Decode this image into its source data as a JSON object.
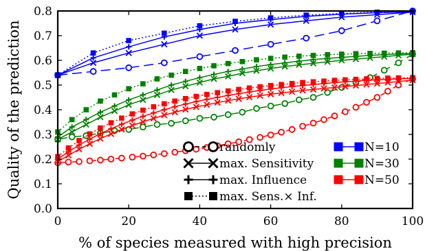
{
  "chart_data": {
    "type": "line",
    "xlabel": "% of species measured with high precision",
    "ylabel": "Quality of the prediction",
    "xlim": [
      0,
      100
    ],
    "ylim": [
      0.0,
      0.8
    ],
    "xticks": [
      0,
      20,
      40,
      60,
      80,
      100
    ],
    "yticks": [
      0.0,
      0.1,
      0.2,
      0.3,
      0.4,
      0.5,
      0.6,
      0.7,
      0.8
    ],
    "grid": false,
    "colors": {
      "N=10": "#0000ff",
      "N=30": "#008000",
      "N=50": "#ff0000"
    },
    "methods": [
      {
        "label": "randomly",
        "marker": "open-circle",
        "dash": "dashed"
      },
      {
        "label": "max. Sensitivity",
        "marker": "x",
        "dash": "solid"
      },
      {
        "label": "max. Influence",
        "marker": "plus",
        "dash": "solid"
      },
      {
        "label": "max. Sens.× Inf.",
        "marker": "filled-square",
        "dash": "dotted"
      }
    ],
    "sizes": [
      {
        "label": "N=10",
        "color": "#0000ff"
      },
      {
        "label": "N=30",
        "color": "#008000"
      },
      {
        "label": "N=50",
        "color": "#ff0000"
      }
    ],
    "series": [
      {
        "group": "N=10",
        "method": "randomly",
        "x": [
          0,
          10,
          20,
          30,
          40,
          50,
          60,
          70,
          80,
          90,
          100
        ],
        "values": [
          0.54,
          0.555,
          0.57,
          0.59,
          0.615,
          0.64,
          0.665,
          0.69,
          0.72,
          0.76,
          0.8
        ]
      },
      {
        "group": "N=10",
        "method": "max. Sensitivity",
        "x": [
          0,
          10,
          20,
          30,
          40,
          50,
          60,
          70,
          80,
          90,
          100
        ],
        "values": [
          0.54,
          0.59,
          0.63,
          0.665,
          0.7,
          0.725,
          0.745,
          0.76,
          0.775,
          0.785,
          0.795
        ]
      },
      {
        "group": "N=10",
        "method": "max. Influence",
        "x": [
          0,
          10,
          20,
          30,
          40,
          50,
          60,
          70,
          80,
          90,
          100
        ],
        "values": [
          0.54,
          0.61,
          0.655,
          0.695,
          0.725,
          0.75,
          0.765,
          0.778,
          0.787,
          0.793,
          0.797
        ]
      },
      {
        "group": "N=10",
        "method": "max. Sens.× Inf.",
        "x": [
          0,
          10,
          20,
          30,
          40,
          50,
          60,
          70,
          80,
          90,
          100
        ],
        "values": [
          0.54,
          0.63,
          0.68,
          0.71,
          0.74,
          0.758,
          0.772,
          0.783,
          0.79,
          0.795,
          0.798
        ]
      },
      {
        "group": "N=30",
        "method": "randomly",
        "x": [
          0,
          4,
          8,
          12,
          16,
          20,
          24,
          28,
          32,
          36,
          40,
          44,
          48,
          52,
          56,
          60,
          64,
          68,
          72,
          76,
          80,
          84,
          88,
          92,
          96,
          100
        ],
        "values": [
          0.28,
          0.29,
          0.295,
          0.305,
          0.315,
          0.32,
          0.33,
          0.34,
          0.345,
          0.355,
          0.365,
          0.37,
          0.38,
          0.39,
          0.405,
          0.415,
          0.425,
          0.44,
          0.45,
          0.47,
          0.49,
          0.51,
          0.53,
          0.56,
          0.59,
          0.625
        ]
      },
      {
        "group": "N=30",
        "method": "max. Sensitivity",
        "x": [
          0,
          4,
          8,
          12,
          16,
          20,
          24,
          28,
          32,
          36,
          40,
          44,
          48,
          52,
          56,
          60,
          64,
          68,
          72,
          76,
          80,
          84,
          88,
          92,
          96,
          100
        ],
        "values": [
          0.28,
          0.31,
          0.34,
          0.37,
          0.395,
          0.42,
          0.44,
          0.46,
          0.48,
          0.495,
          0.51,
          0.525,
          0.535,
          0.548,
          0.558,
          0.567,
          0.575,
          0.582,
          0.588,
          0.594,
          0.6,
          0.605,
          0.61,
          0.615,
          0.62,
          0.625
        ]
      },
      {
        "group": "N=30",
        "method": "max. Influence",
        "x": [
          0,
          4,
          8,
          12,
          16,
          20,
          24,
          28,
          32,
          36,
          40,
          44,
          48,
          52,
          56,
          60,
          64,
          68,
          72,
          76,
          80,
          84,
          88,
          92,
          96,
          100
        ],
        "values": [
          0.29,
          0.33,
          0.36,
          0.39,
          0.415,
          0.44,
          0.46,
          0.48,
          0.5,
          0.515,
          0.53,
          0.543,
          0.555,
          0.565,
          0.575,
          0.583,
          0.59,
          0.597,
          0.603,
          0.608,
          0.612,
          0.616,
          0.62,
          0.623,
          0.626,
          0.628
        ]
      },
      {
        "group": "N=30",
        "method": "max. Sens.× Inf.",
        "x": [
          0,
          4,
          8,
          12,
          16,
          20,
          24,
          28,
          32,
          36,
          40,
          44,
          48,
          52,
          56,
          60,
          64,
          68,
          72,
          76,
          80,
          84,
          88,
          92,
          96,
          100
        ],
        "values": [
          0.31,
          0.36,
          0.4,
          0.435,
          0.46,
          0.485,
          0.505,
          0.525,
          0.54,
          0.555,
          0.567,
          0.578,
          0.587,
          0.595,
          0.602,
          0.608,
          0.613,
          0.617,
          0.62,
          0.623,
          0.625,
          0.627,
          0.628,
          0.629,
          0.63,
          0.631
        ]
      },
      {
        "group": "N=50",
        "method": "randomly",
        "x": [
          0,
          3,
          6,
          9,
          12,
          15,
          18,
          21,
          24,
          27,
          30,
          33,
          36,
          39,
          42,
          45,
          48,
          51,
          54,
          57,
          60,
          63,
          66,
          69,
          72,
          75,
          78,
          81,
          84,
          87,
          90,
          93,
          96,
          100
        ],
        "values": [
          0.185,
          0.188,
          0.19,
          0.193,
          0.196,
          0.2,
          0.204,
          0.208,
          0.212,
          0.217,
          0.222,
          0.228,
          0.234,
          0.24,
          0.247,
          0.254,
          0.262,
          0.27,
          0.279,
          0.288,
          0.298,
          0.309,
          0.32,
          0.333,
          0.346,
          0.36,
          0.375,
          0.392,
          0.41,
          0.43,
          0.45,
          0.475,
          0.5,
          0.525
        ]
      },
      {
        "group": "N=50",
        "method": "max. Sensitivity",
        "x": [
          0,
          3,
          6,
          9,
          12,
          15,
          18,
          21,
          24,
          27,
          30,
          33,
          36,
          39,
          42,
          45,
          48,
          51,
          54,
          57,
          60,
          63,
          66,
          69,
          72,
          75,
          78,
          81,
          84,
          87,
          90,
          93,
          96,
          100
        ],
        "values": [
          0.19,
          0.215,
          0.24,
          0.262,
          0.283,
          0.302,
          0.32,
          0.336,
          0.351,
          0.365,
          0.378,
          0.39,
          0.401,
          0.411,
          0.42,
          0.429,
          0.437,
          0.444,
          0.451,
          0.457,
          0.463,
          0.468,
          0.473,
          0.478,
          0.482,
          0.486,
          0.49,
          0.494,
          0.498,
          0.502,
          0.506,
          0.51,
          0.514,
          0.52
        ]
      },
      {
        "group": "N=50",
        "method": "max. Influence",
        "x": [
          0,
          3,
          6,
          9,
          12,
          15,
          18,
          21,
          24,
          27,
          30,
          33,
          36,
          39,
          42,
          45,
          48,
          51,
          54,
          57,
          60,
          63,
          66,
          69,
          72,
          75,
          78,
          81,
          84,
          87,
          90,
          93,
          96,
          100
        ],
        "values": [
          0.2,
          0.23,
          0.257,
          0.281,
          0.303,
          0.323,
          0.341,
          0.358,
          0.373,
          0.387,
          0.4,
          0.412,
          0.423,
          0.433,
          0.442,
          0.45,
          0.458,
          0.465,
          0.472,
          0.478,
          0.484,
          0.489,
          0.494,
          0.498,
          0.502,
          0.506,
          0.51,
          0.513,
          0.516,
          0.519,
          0.521,
          0.523,
          0.525,
          0.527
        ]
      },
      {
        "group": "N=50",
        "method": "max. Sens.× Inf.",
        "x": [
          0,
          3,
          6,
          9,
          12,
          15,
          18,
          21,
          24,
          27,
          30,
          33,
          36,
          39,
          42,
          45,
          48,
          51,
          54,
          57,
          60,
          63,
          66,
          69,
          72,
          75,
          78,
          81,
          84,
          87,
          90,
          93,
          96,
          100
        ],
        "values": [
          0.21,
          0.245,
          0.275,
          0.302,
          0.326,
          0.347,
          0.366,
          0.383,
          0.398,
          0.412,
          0.424,
          0.435,
          0.445,
          0.454,
          0.462,
          0.469,
          0.476,
          0.482,
          0.488,
          0.493,
          0.498,
          0.502,
          0.506,
          0.51,
          0.513,
          0.516,
          0.519,
          0.521,
          0.523,
          0.525,
          0.527,
          0.528,
          0.529,
          0.53
        ]
      }
    ]
  }
}
